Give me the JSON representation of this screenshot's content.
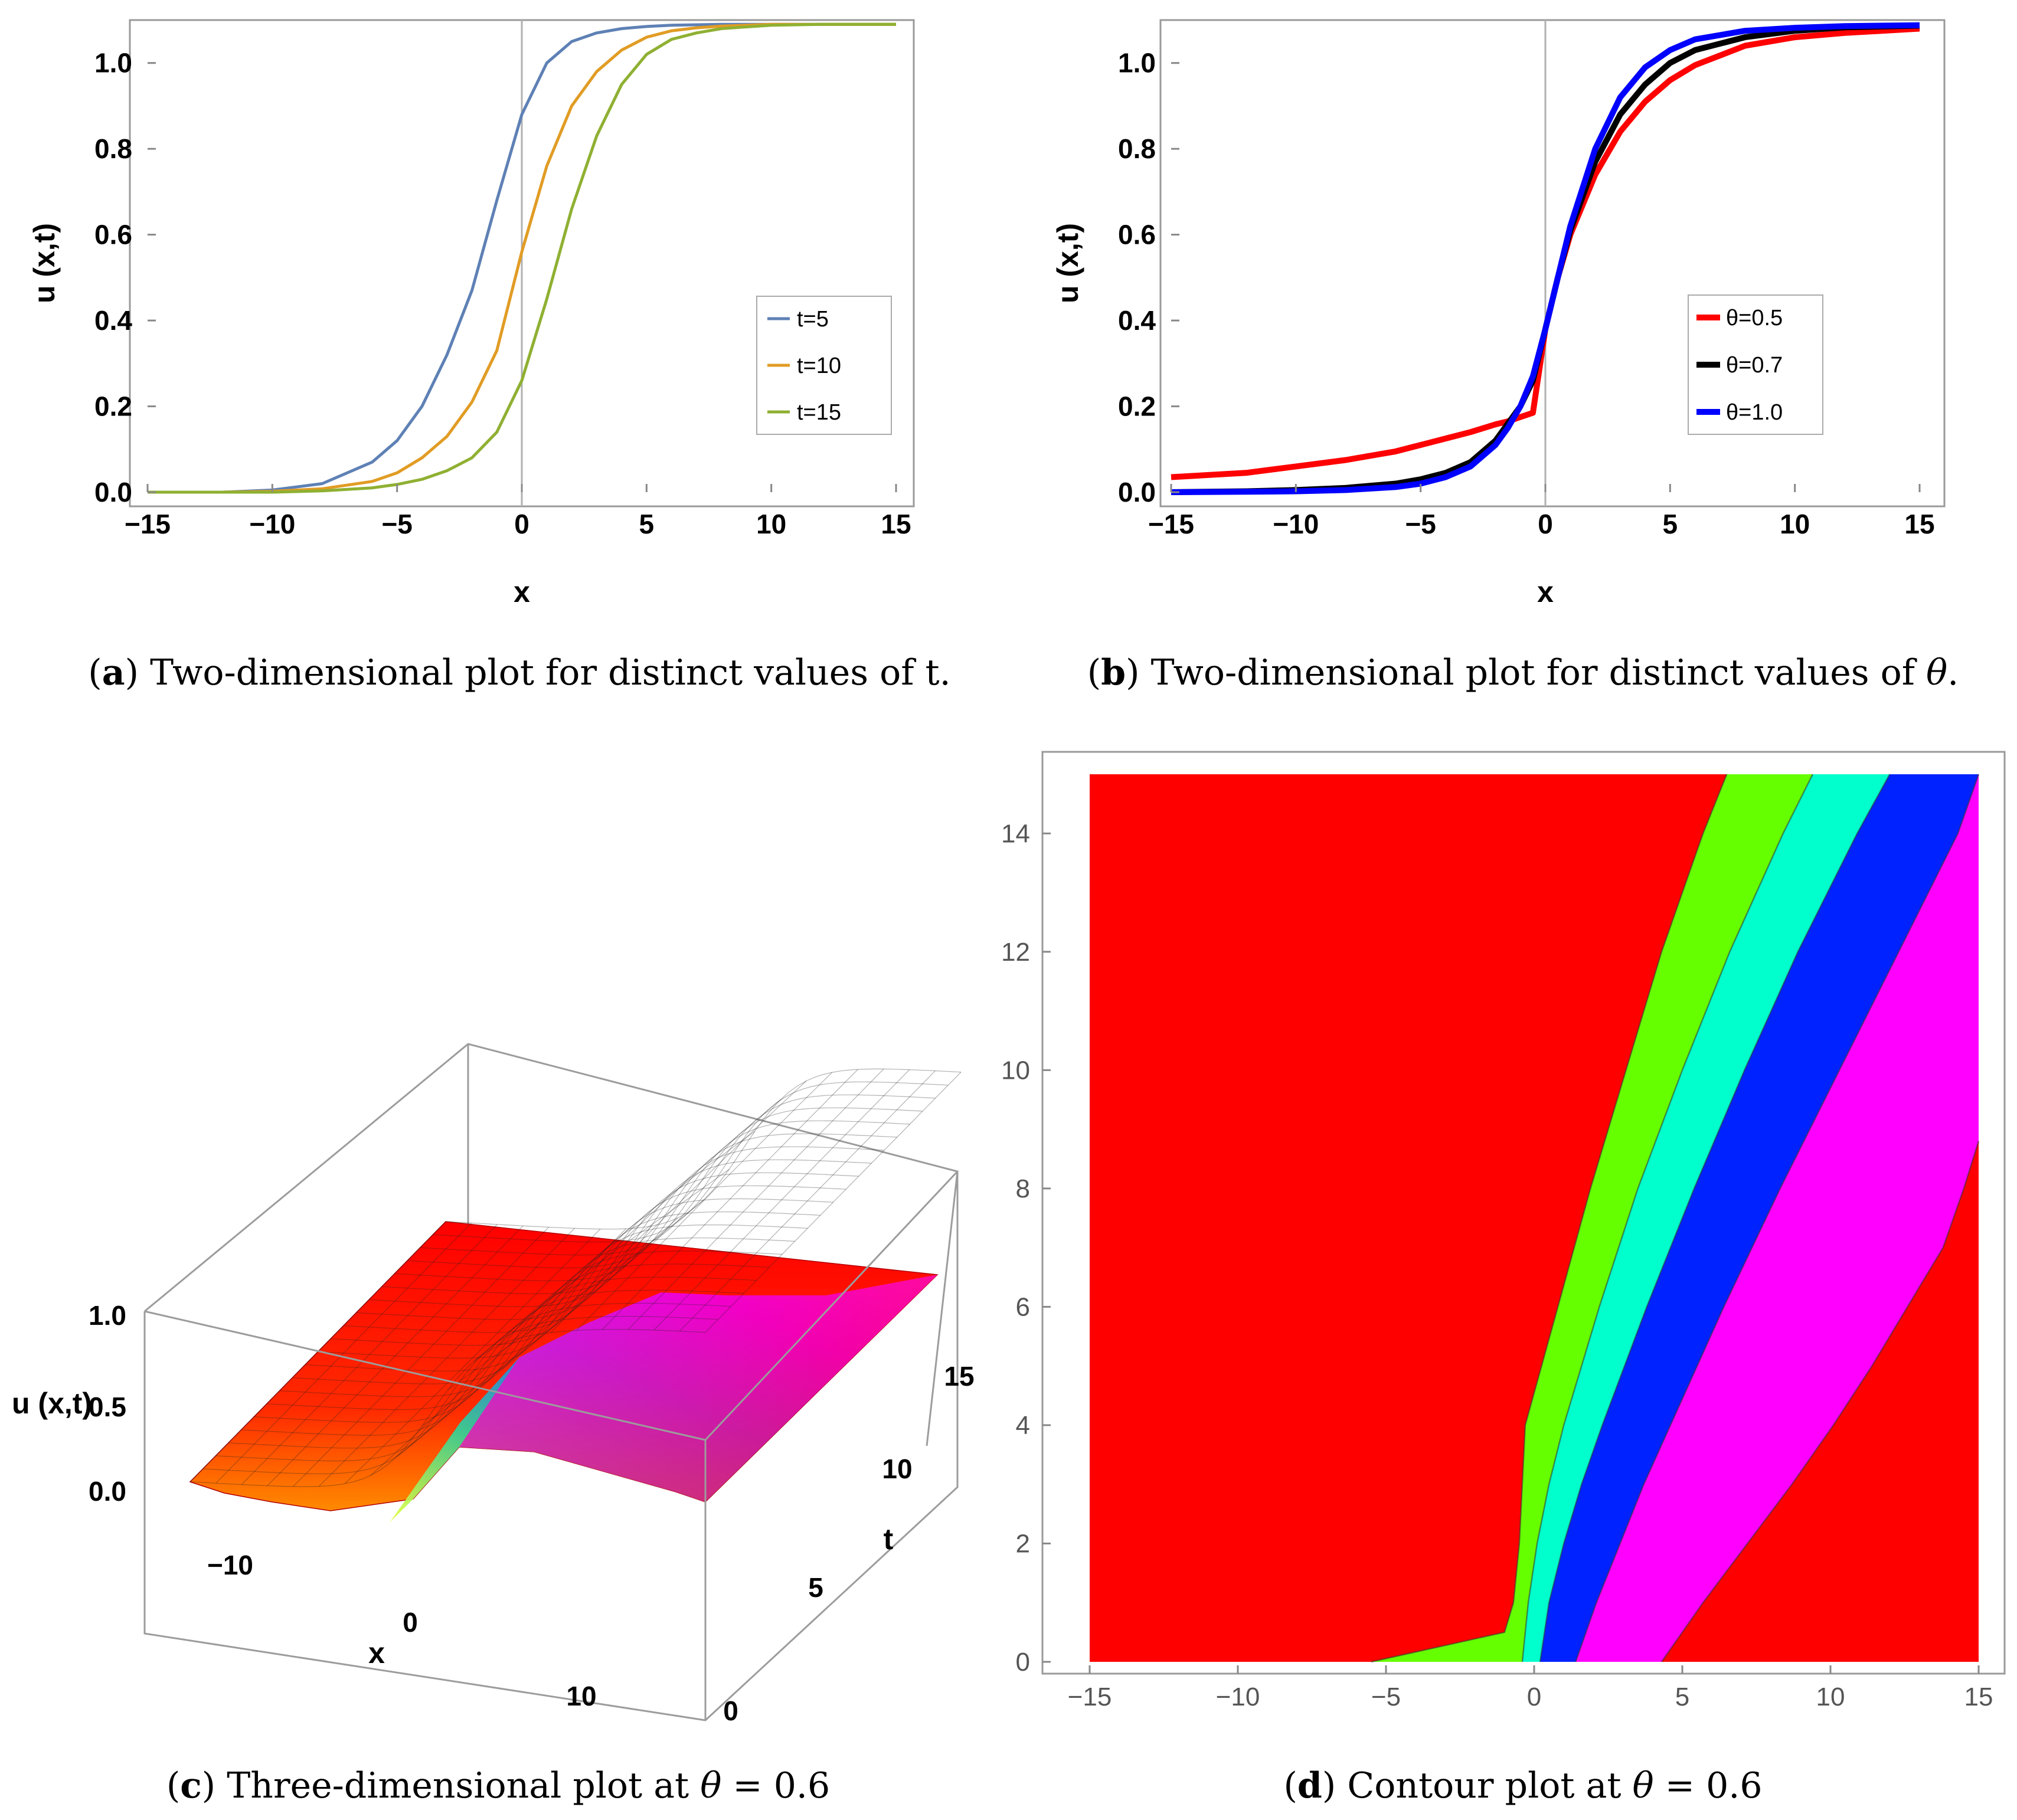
{
  "captions": {
    "a": {
      "label": "a",
      "text": "Two-dimensional plot for distinct values of t."
    },
    "b": {
      "label": "b",
      "text": "Two-dimensional plot for distinct values of ",
      "sym": "θ",
      "end": "."
    },
    "c": {
      "label": "c",
      "text": "Three-dimensional plot at ",
      "sym": "θ",
      "rest": " = 0.6"
    },
    "d": {
      "label": "d",
      "text": "Contour plot at ",
      "sym": "θ",
      "rest": " = 0.6"
    }
  },
  "chart_data": [
    {
      "panel": "a",
      "type": "line",
      "xlabel": "x",
      "ylabel": "u (x,t)",
      "xlim": [
        -15,
        15
      ],
      "ylim": [
        0,
        1.1
      ],
      "xticks": [
        "−15",
        "−10",
        "−5",
        "0",
        "5",
        "10",
        "15"
      ],
      "yticks": [
        "0.0",
        "0.2",
        "0.4",
        "0.6",
        "0.8",
        "1.0"
      ],
      "legend_position": "right",
      "x": [
        -15,
        -12,
        -10,
        -8,
        -6,
        -5,
        -4,
        -3,
        -2,
        -1,
        0,
        1,
        2,
        3,
        4,
        5,
        6,
        7,
        8,
        10,
        12,
        15
      ],
      "series": [
        {
          "name": "t=5",
          "color": "#5e81b5",
          "values": [
            0.0,
            0.0,
            0.005,
            0.02,
            0.07,
            0.12,
            0.2,
            0.32,
            0.47,
            0.68,
            0.88,
            1.0,
            1.05,
            1.07,
            1.08,
            1.085,
            1.088,
            1.089,
            1.09,
            1.09,
            1.09,
            1.09
          ]
        },
        {
          "name": "t=10",
          "color": "#e19c24",
          "values": [
            0.0,
            0.0,
            0.002,
            0.008,
            0.025,
            0.045,
            0.08,
            0.13,
            0.21,
            0.33,
            0.56,
            0.76,
            0.9,
            0.98,
            1.03,
            1.06,
            1.075,
            1.082,
            1.086,
            1.09,
            1.09,
            1.09
          ]
        },
        {
          "name": "t=15",
          "color": "#8fb032",
          "values": [
            0.0,
            0.0,
            0.0,
            0.003,
            0.01,
            0.018,
            0.03,
            0.05,
            0.08,
            0.14,
            0.26,
            0.45,
            0.66,
            0.83,
            0.95,
            1.02,
            1.055,
            1.07,
            1.08,
            1.088,
            1.09,
            1.09
          ]
        }
      ]
    },
    {
      "panel": "b",
      "type": "line",
      "xlabel": "x",
      "ylabel": "u (x,t)",
      "xlim": [
        -15,
        15
      ],
      "ylim": [
        0,
        1.1
      ],
      "xticks": [
        "−15",
        "−10",
        "−5",
        "0",
        "5",
        "10",
        "15"
      ],
      "yticks": [
        "0.0",
        "0.2",
        "0.4",
        "0.6",
        "0.8",
        "1.0"
      ],
      "legend_position": "right",
      "x": [
        -15,
        -12,
        -10,
        -8,
        -6,
        -5,
        -4,
        -3,
        -2,
        -1.5,
        -1,
        -0.5,
        0,
        0.5,
        1,
        2,
        3,
        4,
        5,
        6,
        8,
        10,
        12,
        15
      ],
      "series": [
        {
          "name": "θ=0.5",
          "color": "#ff0000",
          "values": [
            0.035,
            0.045,
            0.06,
            0.075,
            0.095,
            0.11,
            0.125,
            0.14,
            0.158,
            0.165,
            0.175,
            0.185,
            0.38,
            0.5,
            0.6,
            0.74,
            0.84,
            0.91,
            0.96,
            0.995,
            1.04,
            1.06,
            1.07,
            1.08
          ]
        },
        {
          "name": "θ=0.7",
          "color": "#000000",
          "values": [
            0.0,
            0.002,
            0.005,
            0.01,
            0.02,
            0.03,
            0.045,
            0.07,
            0.12,
            0.16,
            0.2,
            0.26,
            0.38,
            0.5,
            0.61,
            0.77,
            0.88,
            0.95,
            1.0,
            1.03,
            1.06,
            1.075,
            1.083,
            1.087
          ]
        },
        {
          "name": "θ=1.0",
          "color": "#0000ff",
          "values": [
            0.0,
            0.001,
            0.002,
            0.005,
            0.012,
            0.02,
            0.035,
            0.06,
            0.11,
            0.15,
            0.2,
            0.27,
            0.38,
            0.5,
            0.62,
            0.8,
            0.92,
            0.99,
            1.03,
            1.055,
            1.075,
            1.082,
            1.086,
            1.088
          ]
        }
      ]
    },
    {
      "panel": "c",
      "type": "surface",
      "xlabel": "x",
      "ylabel": "t",
      "zlabel": "u (x,t)",
      "xticks": [
        "−10",
        "0",
        "10"
      ],
      "yticks": [
        "0",
        "5",
        "10",
        "15"
      ],
      "zticks": [
        "0.0",
        "0.5",
        "1.0"
      ],
      "xlim": [
        -15,
        15
      ],
      "tlim": [
        0,
        15
      ],
      "zlim": [
        0,
        1.1
      ]
    },
    {
      "panel": "d",
      "type": "contour",
      "xlim": [
        -15,
        15
      ],
      "ylim": [
        0,
        15
      ],
      "xticks": [
        "−15",
        "−10",
        "−5",
        "0",
        "5",
        "10",
        "15"
      ],
      "yticks": [
        "0",
        "2",
        "4",
        "6",
        "8",
        "10",
        "12",
        "14"
      ],
      "colors": [
        "#ff0000",
        "#66ff00",
        "#00ffcc",
        "#0022ff",
        "#ff00ff",
        "#ff0000"
      ],
      "boundaries": [
        {
          "t": [
            0,
            0.5,
            1,
            2,
            3,
            4,
            6,
            8,
            10,
            12,
            14,
            15
          ],
          "x": [
            -5.5,
            -1.0,
            -0.7,
            -0.5,
            -0.4,
            -0.3,
            0.8,
            1.9,
            3.1,
            4.3,
            5.7,
            6.5
          ]
        },
        {
          "t": [
            0,
            1,
            2,
            3,
            4,
            6,
            8,
            10,
            12,
            14,
            15
          ],
          "x": [
            -0.4,
            -0.2,
            0.1,
            0.5,
            1.0,
            2.2,
            3.5,
            5.0,
            6.6,
            8.4,
            9.4
          ]
        },
        {
          "t": [
            0,
            1,
            2,
            3,
            4,
            6,
            8,
            10,
            12,
            14,
            15
          ],
          "x": [
            0.2,
            0.5,
            1.0,
            1.6,
            2.3,
            3.8,
            5.4,
            7.1,
            8.9,
            10.9,
            12.0
          ]
        },
        {
          "t": [
            0,
            1,
            2,
            3,
            4,
            6,
            8,
            10,
            12,
            14,
            15
          ],
          "x": [
            1.4,
            2.1,
            2.9,
            3.7,
            4.6,
            6.4,
            8.3,
            10.3,
            12.3,
            14.3,
            15.0
          ]
        },
        {
          "t": [
            0,
            1,
            2,
            3,
            4,
            5,
            6,
            7,
            8,
            8.8
          ],
          "x": [
            4.3,
            5.7,
            7.2,
            8.7,
            10.1,
            11.4,
            12.6,
            13.8,
            14.5,
            15.0
          ]
        }
      ]
    }
  ]
}
